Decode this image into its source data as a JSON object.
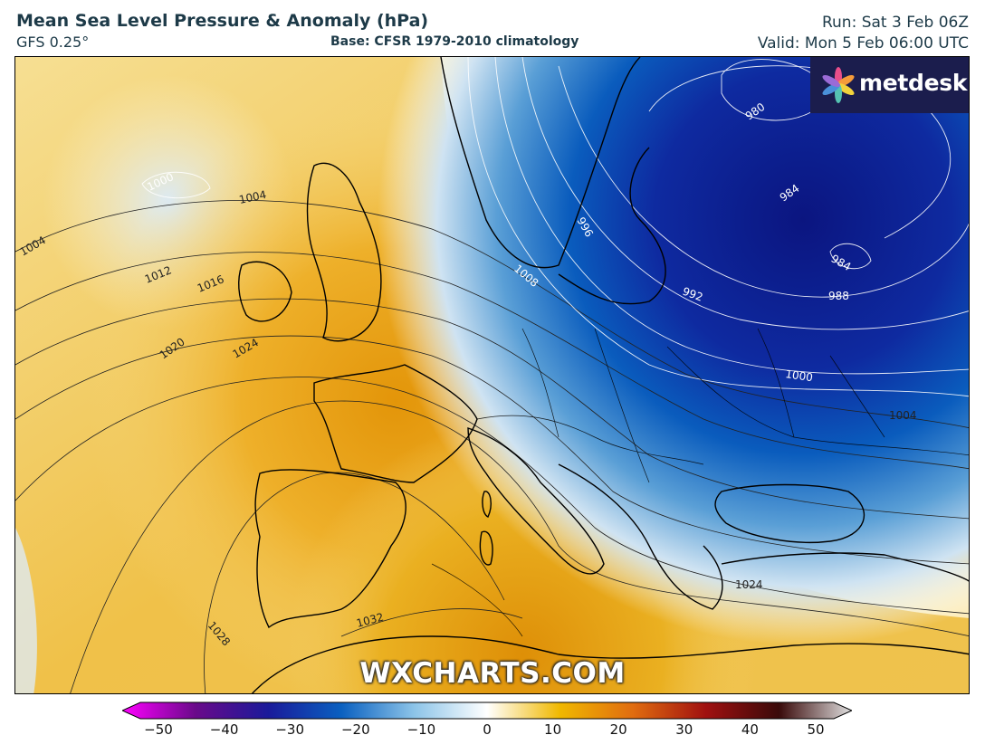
{
  "header": {
    "title": "Mean Sea Level Pressure & Anomaly (hPa)",
    "model": "GFS 0.25°",
    "base": "Base: CFSR 1979-2010 climatology",
    "run": "Run: Sat 3 Feb 06Z",
    "valid": "Valid: Mon 5 Feb 06:00 UTC"
  },
  "logo": {
    "text": "metdesk",
    "icon": "metdesk-flower-icon"
  },
  "watermark": "WXCHARTS.COM",
  "isobar_labels": [
    "980",
    "984",
    "984",
    "988",
    "992",
    "996",
    "1000",
    "1000",
    "1004",
    "1004",
    "1004",
    "1008",
    "1012",
    "1016",
    "1020",
    "1024",
    "1024",
    "1028",
    "1032"
  ],
  "colorbar": {
    "ticks": [
      "−50",
      "−40",
      "−30",
      "−20",
      "−10",
      "0",
      "10",
      "20",
      "30",
      "40",
      "50"
    ],
    "min": -50,
    "max": 50,
    "colors": {
      "neg50": "#ff00ff",
      "neg40": "#6a0a8a",
      "neg30": "#1a1a9a",
      "neg20": "#0a60c0",
      "neg10": "#8cc4e8",
      "zero": "#ffffff",
      "pos10": "#f0b800",
      "pos20": "#e06c10",
      "pos30": "#a01010",
      "pos40": "#3a0a0a",
      "pos50": "#e0e0e0"
    }
  },
  "colors": {
    "high_anomaly": "#eaa512",
    "low_anomaly": "#0c1a8c",
    "text": "#1d3a48"
  }
}
